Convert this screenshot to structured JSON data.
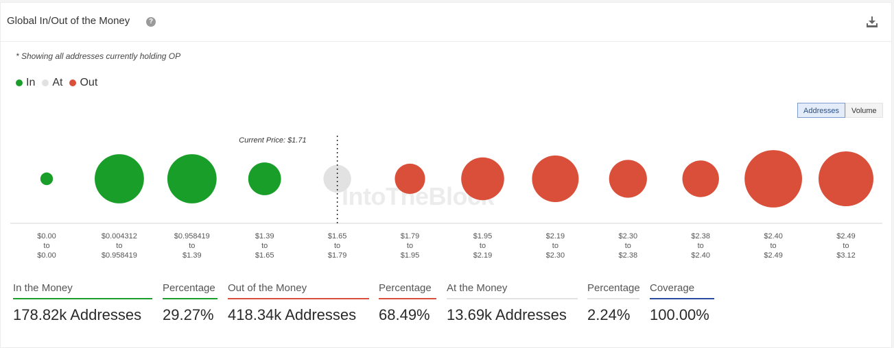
{
  "header": {
    "title": "Global In/Out of the Money",
    "help_icon": "question-circle-icon",
    "download_icon": "download-icon"
  },
  "note": "* Showing all addresses currently holding OP",
  "legend": [
    {
      "label": "In",
      "color": "#1a9e2a"
    },
    {
      "label": "At",
      "color": "#e2e2e2"
    },
    {
      "label": "Out",
      "color": "#d94f3a"
    }
  ],
  "toggle": {
    "addresses": "Addresses",
    "volume": "Volume",
    "active": "addresses"
  },
  "watermark": "IntoTheBlock",
  "chart_data": {
    "type": "bubble",
    "current_price_label": "Current Price: $1.71",
    "current_price_after_index": 4,
    "categories": [
      {
        "from": "$0.00",
        "to": "$0.00",
        "status": "in",
        "size": 0.2
      },
      {
        "from": "$0.004312",
        "to": "$0.958419",
        "status": "in",
        "size": 0.78
      },
      {
        "from": "$0.958419",
        "to": "$1.39",
        "status": "in",
        "size": 0.78
      },
      {
        "from": "$1.39",
        "to": "$1.65",
        "status": "in",
        "size": 0.52
      },
      {
        "from": "$1.65",
        "to": "$1.79",
        "status": "at",
        "size": 0.44
      },
      {
        "from": "$1.79",
        "to": "$1.95",
        "status": "out",
        "size": 0.48
      },
      {
        "from": "$1.95",
        "to": "$2.19",
        "status": "out",
        "size": 0.68
      },
      {
        "from": "$2.19",
        "to": "$2.30",
        "status": "out",
        "size": 0.74
      },
      {
        "from": "$2.30",
        "to": "$2.38",
        "status": "out",
        "size": 0.6
      },
      {
        "from": "$2.38",
        "to": "$2.40",
        "status": "out",
        "size": 0.58
      },
      {
        "from": "$2.40",
        "to": "$2.49",
        "status": "out",
        "size": 0.91
      },
      {
        "from": "$2.49",
        "to": "$3.12",
        "status": "out",
        "size": 0.87
      }
    ],
    "colors": {
      "in": "#1a9e2a",
      "at": "#e2e2e2",
      "out": "#d94f3a"
    }
  },
  "stats": [
    {
      "label": "In the Money",
      "value": "178.82k Addresses",
      "color": "#1a9e2a"
    },
    {
      "label": "Percentage",
      "value": "29.27%",
      "color": "#1a9e2a"
    },
    {
      "label": "Out of the Money",
      "value": "418.34k Addresses",
      "color": "#d94f3a"
    },
    {
      "label": "Percentage",
      "value": "68.49%",
      "color": "#d94f3a"
    },
    {
      "label": "At the Money",
      "value": "13.69k Addresses",
      "color": "#e2e2e2"
    },
    {
      "label": "Percentage",
      "value": "2.24%",
      "color": "#e2e2e2"
    },
    {
      "label": "Coverage",
      "value": "100.00%",
      "color": "#2a4aa0"
    }
  ]
}
